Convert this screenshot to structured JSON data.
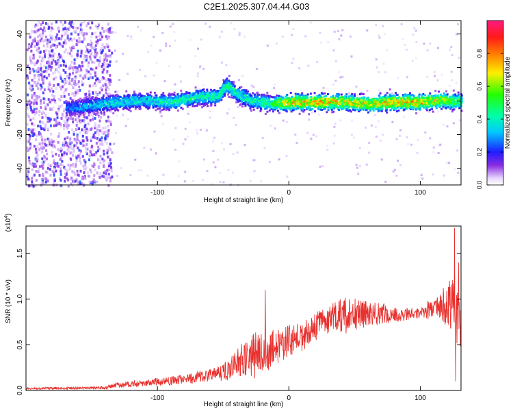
{
  "title": "C2E1.2025.307.04.44.G03",
  "chart_data": [
    {
      "type": "heatmap",
      "xlabel": "Height of straight line (km)",
      "ylabel": "Frequency (Hz)",
      "xlim": [
        -200,
        131
      ],
      "ylim": [
        -50,
        48
      ],
      "xticks": [
        -100,
        0,
        100
      ],
      "yticks": [
        -40,
        -20,
        0,
        20,
        40
      ],
      "colorbar": {
        "label": "Normalized spectral amplitude",
        "range": [
          0,
          1
        ],
        "ticks": [
          {
            "value": 0.0,
            "label": "0.0"
          },
          {
            "value": 0.2,
            "label": "0.2"
          },
          {
            "value": 0.4,
            "label": "0.4"
          },
          {
            "value": 0.6,
            "label": "0.6"
          },
          {
            "value": 0.8,
            "label": "0.8"
          }
        ]
      },
      "ridge": [
        {
          "x": -170,
          "f": -4,
          "amp": 0.3
        },
        {
          "x": -150,
          "f": -2,
          "amp": 0.4
        },
        {
          "x": -130,
          "f": 0,
          "amp": 0.45
        },
        {
          "x": -110,
          "f": 1,
          "amp": 0.45
        },
        {
          "x": -90,
          "f": 0,
          "amp": 0.5
        },
        {
          "x": -70,
          "f": 3,
          "amp": 0.5
        },
        {
          "x": -55,
          "f": 3,
          "amp": 0.5
        },
        {
          "x": -48,
          "f": 10,
          "amp": 0.55
        },
        {
          "x": -40,
          "f": 5,
          "amp": 0.5
        },
        {
          "x": -30,
          "f": 1,
          "amp": 0.5
        },
        {
          "x": -15,
          "f": -1,
          "amp": 0.55
        },
        {
          "x": 0,
          "f": 0,
          "amp": 0.85
        },
        {
          "x": 20,
          "f": 0,
          "amp": 0.85
        },
        {
          "x": 40,
          "f": 0,
          "amp": 0.8
        },
        {
          "x": 60,
          "f": -1,
          "amp": 0.8
        },
        {
          "x": 80,
          "f": 0,
          "amp": 0.85
        },
        {
          "x": 100,
          "f": 0,
          "amp": 0.85
        },
        {
          "x": 115,
          "f": 1,
          "amp": 0.75
        },
        {
          "x": 131,
          "f": 0,
          "amp": 0.6
        }
      ],
      "scatter_region": {
        "x": [
          -200,
          -135
        ],
        "f": [
          -50,
          48
        ],
        "amp": 0.2
      }
    },
    {
      "type": "line",
      "xlabel": "Height of straight line (km)",
      "ylabel": "SNR (10 * v/v)",
      "scale_label": "(x10",
      "scale_exponent": "4",
      "scale_suffix": ")",
      "xlim": [
        -200,
        131
      ],
      "ylim": [
        0,
        1.8
      ],
      "xticks": [
        -100,
        0,
        100
      ],
      "yticks": [
        {
          "value": 0.0,
          "label": "0.0"
        },
        {
          "value": 0.5,
          "label": "0.5"
        },
        {
          "value": 1.0,
          "label": "1.0"
        },
        {
          "value": 1.5,
          "label": "1.5"
        }
      ],
      "color": "#e8312e",
      "envelope": [
        {
          "x": -200,
          "mean": 0.02,
          "amp": 0.01
        },
        {
          "x": -140,
          "mean": 0.03,
          "amp": 0.015
        },
        {
          "x": -130,
          "mean": 0.06,
          "amp": 0.03
        },
        {
          "x": -80,
          "mean": 0.12,
          "amp": 0.05
        },
        {
          "x": -50,
          "mean": 0.2,
          "amp": 0.08
        },
        {
          "x": -40,
          "mean": 0.3,
          "amp": 0.15
        },
        {
          "x": -25,
          "mean": 0.4,
          "amp": 0.25
        },
        {
          "x": -10,
          "mean": 0.5,
          "amp": 0.2
        },
        {
          "x": 10,
          "mean": 0.6,
          "amp": 0.15
        },
        {
          "x": 25,
          "mean": 0.75,
          "amp": 0.15
        },
        {
          "x": 45,
          "mean": 0.85,
          "amp": 0.2
        },
        {
          "x": 60,
          "mean": 0.85,
          "amp": 0.15
        },
        {
          "x": 80,
          "mean": 0.83,
          "amp": 0.08
        },
        {
          "x": 100,
          "mean": 0.85,
          "amp": 0.06
        },
        {
          "x": 115,
          "mean": 0.9,
          "amp": 0.15
        },
        {
          "x": 124,
          "mean": 0.95,
          "amp": 0.3
        },
        {
          "x": 131,
          "mean": 0.7,
          "amp": 0.25
        }
      ],
      "spikes": [
        {
          "x": -18,
          "y": 1.1
        },
        {
          "x": 126,
          "y": 1.78
        },
        {
          "x": 127,
          "y": 0.1
        },
        {
          "x": 129,
          "y": 1.4
        }
      ]
    }
  ]
}
